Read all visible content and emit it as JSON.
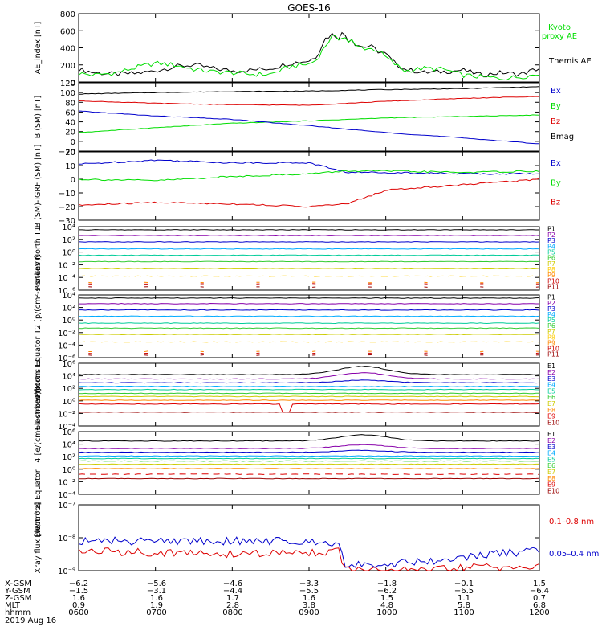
{
  "title": "GOES-16",
  "colors": {
    "black": "#000000",
    "blue": "#0000cc",
    "green": "#00dd00",
    "red": "#dd0000"
  },
  "chart_data": [
    {
      "type": "line",
      "ylabel": "AE_index [nT]",
      "ylim": [
        0,
        800
      ],
      "yscale": "linear",
      "yticks": [
        "800",
        "600",
        "400",
        "200",
        "0"
      ],
      "legend": [
        {
          "label": "Kyoto proxy AE",
          "color": "#00dd00"
        },
        {
          "label": "Themis AE",
          "color": "#000000"
        }
      ],
      "series": [
        {
          "name": "Themis AE",
          "color": "#000000",
          "x": [
            0,
            0.2,
            0.5,
            0.75,
            1.0,
            1.25,
            1.5,
            1.75,
            2.0,
            2.25,
            2.5,
            2.75,
            3.0,
            3.1,
            3.2,
            3.3,
            3.4,
            3.45,
            3.5,
            3.55,
            3.6,
            3.7,
            3.8,
            3.9,
            4.0,
            4.1,
            4.25,
            4.5,
            4.75,
            5.0,
            5.25,
            5.5,
            5.75,
            6.0
          ],
          "y": [
            150,
            110,
            90,
            100,
            130,
            180,
            200,
            160,
            130,
            140,
            160,
            220,
            250,
            300,
            500,
            560,
            520,
            600,
            480,
            520,
            450,
            410,
            420,
            360,
            330,
            230,
            150,
            110,
            120,
            140,
            80,
            110,
            90,
            160
          ]
        },
        {
          "name": "Kyoto proxy AE",
          "color": "#00dd00",
          "x": [
            0,
            0.2,
            0.5,
            0.75,
            1.0,
            1.25,
            1.5,
            1.75,
            2.0,
            2.25,
            2.5,
            2.75,
            3.0,
            3.1,
            3.2,
            3.3,
            3.4,
            3.45,
            3.5,
            3.55,
            3.6,
            3.7,
            3.8,
            3.9,
            4.0,
            4.1,
            4.25,
            4.5,
            4.75,
            5.0,
            5.25,
            5.5,
            5.75,
            6.0
          ],
          "y": [
            100,
            80,
            110,
            170,
            220,
            200,
            150,
            120,
            110,
            90,
            90,
            180,
            210,
            260,
            410,
            530,
            500,
            560,
            460,
            500,
            420,
            400,
            390,
            370,
            290,
            220,
            130,
            160,
            150,
            80,
            60,
            40,
            60,
            90
          ]
        }
      ]
    },
    {
      "type": "line",
      "ylabel": "B (SM) [nT]",
      "ylim": [
        -20,
        120
      ],
      "yscale": "linear",
      "yticks": [
        "120",
        "100",
        "80",
        "60",
        "40",
        "20",
        "0",
        "−20"
      ],
      "legend": [
        {
          "label": "Bx",
          "color": "#0000cc"
        },
        {
          "label": "By",
          "color": "#00dd00"
        },
        {
          "label": "Bz",
          "color": "#dd0000"
        },
        {
          "label": "Bmag",
          "color": "#000000"
        }
      ],
      "series": [
        {
          "name": "Bmag",
          "color": "#000000",
          "x": [
            0,
            1,
            2,
            3,
            4,
            5,
            6
          ],
          "y": [
            97,
            100,
            102,
            103,
            106,
            108,
            112
          ]
        },
        {
          "name": "Bz",
          "color": "#dd0000",
          "x": [
            0,
            1,
            2,
            3,
            4,
            5,
            6
          ],
          "y": [
            83,
            78,
            75,
            74,
            82,
            88,
            92
          ]
        },
        {
          "name": "By",
          "color": "#00dd00",
          "x": [
            0,
            1,
            2,
            3,
            4,
            5,
            6
          ],
          "y": [
            18,
            28,
            37,
            42,
            48,
            51,
            54
          ]
        },
        {
          "name": "Bx",
          "color": "#0000cc",
          "x": [
            0,
            1,
            2,
            3,
            4,
            5,
            6
          ],
          "y": [
            62,
            52,
            45,
            32,
            18,
            7,
            -5
          ]
        }
      ]
    },
    {
      "type": "line",
      "ylabel": "B (SM)-IGRF (SM) [nT]",
      "ylim": [
        -30,
        20
      ],
      "yscale": "linear",
      "yticks": [
        "20",
        "10",
        "0",
        "−10",
        "−20",
        "−30"
      ],
      "legend": [
        {
          "label": "Bx",
          "color": "#0000cc"
        },
        {
          "label": "By",
          "color": "#00dd00"
        },
        {
          "label": "Bz",
          "color": "#dd0000"
        }
      ],
      "series": [
        {
          "name": "Bx",
          "color": "#0000cc",
          "x": [
            0,
            1,
            2,
            3,
            3.5,
            4,
            5,
            6
          ],
          "y": [
            11,
            14,
            12,
            12,
            5,
            5,
            4,
            4
          ]
        },
        {
          "name": "By",
          "color": "#00dd00",
          "x": [
            0,
            1,
            2,
            3,
            3.5,
            4,
            5,
            6
          ],
          "y": [
            0,
            -1,
            2,
            4,
            6,
            6,
            5,
            6
          ]
        },
        {
          "name": "Bz",
          "color": "#dd0000",
          "x": [
            0,
            1,
            2,
            3,
            3.5,
            4,
            5,
            6
          ],
          "y": [
            -19,
            -17,
            -18,
            -20,
            -18,
            -8,
            -4,
            0
          ]
        }
      ]
    },
    {
      "type": "line",
      "ylabel": "Protons North T1",
      "yscale": "log",
      "ylim": [
        -6,
        4
      ],
      "yticks": [
        "10⁴",
        "10²",
        "10⁰",
        "10⁻²",
        "10⁻⁴",
        "10⁻⁶"
      ],
      "legend": [
        {
          "label": "P1"
        },
        {
          "label": "P2"
        },
        {
          "label": "P3"
        },
        {
          "label": "P4"
        },
        {
          "label": "P5"
        },
        {
          "label": "P6"
        },
        {
          "label": "P7"
        },
        {
          "label": "P8"
        },
        {
          "label": "P9"
        },
        {
          "label": "P10"
        },
        {
          "label": "P11"
        }
      ],
      "series": [
        {
          "name": "P1",
          "color": "#000000",
          "exp": 3.5
        },
        {
          "name": "P2",
          "color": "#8800aa",
          "exp": 2.6
        },
        {
          "name": "P3",
          "color": "#0000cc",
          "exp": 1.6
        },
        {
          "name": "P4",
          "color": "#00aaff",
          "exp": 0.5
        },
        {
          "name": "P5",
          "color": "#00cc99",
          "exp": -0.5
        },
        {
          "name": "P6",
          "color": "#33cc33",
          "exp": -1.5
        },
        {
          "name": "P7",
          "color": "#cccc00",
          "exp": -2.6
        },
        {
          "name": "P8",
          "color": "#ffcc00",
          "exp": -3.8,
          "dashed": true
        },
        {
          "name": "P9",
          "color": "#ff8800",
          "exp": -4.8,
          "sparse": true
        },
        {
          "name": "P10",
          "color": "#cc0000",
          "exp": -5.0,
          "sparse": true
        },
        {
          "name": "P11",
          "color": "#990000",
          "exp": -5.5,
          "sparse": true
        }
      ]
    },
    {
      "type": "line",
      "ylabel": "Protons Equator T2 [p/(cm²-s-sr-keV)]",
      "yscale": "log",
      "ylim": [
        -6,
        4
      ],
      "yticks": [
        "10⁴",
        "10²",
        "10⁰",
        "10⁻²",
        "10⁻⁴",
        "10⁻⁶"
      ],
      "legend": [
        {
          "label": "P1"
        },
        {
          "label": "P2"
        },
        {
          "label": "P3"
        },
        {
          "label": "P4"
        },
        {
          "label": "P5"
        },
        {
          "label": "P6"
        },
        {
          "label": "P7"
        },
        {
          "label": "P8"
        },
        {
          "label": "P9"
        },
        {
          "label": "P10"
        },
        {
          "label": "P11"
        }
      ],
      "series": [
        {
          "name": "P1",
          "color": "#000000",
          "exp": 3.5
        },
        {
          "name": "P2",
          "color": "#8800aa",
          "exp": 2.6
        },
        {
          "name": "P3",
          "color": "#0000cc",
          "exp": 1.6
        },
        {
          "name": "P4",
          "color": "#00aaff",
          "exp": 0.6
        },
        {
          "name": "P5",
          "color": "#00cc99",
          "exp": -0.5
        },
        {
          "name": "P6",
          "color": "#33cc33",
          "exp": -1.3
        },
        {
          "name": "P7",
          "color": "#cccc00",
          "exp": -2.3
        },
        {
          "name": "P8",
          "color": "#ffcc00",
          "exp": -3.5,
          "dashed": true
        },
        {
          "name": "P9",
          "color": "#ff8800",
          "exp": -5.0,
          "sparse": true
        },
        {
          "name": "P10",
          "color": "#cc0000",
          "exp": -5.3,
          "sparse": true
        },
        {
          "name": "P11",
          "color": "#990000",
          "exp": -5.6,
          "sparse": true
        }
      ]
    },
    {
      "type": "line",
      "ylabel": "Electrons North T3",
      "yscale": "log",
      "ylim": [
        -4,
        6
      ],
      "yticks": [
        "10⁶",
        "10⁴",
        "10²",
        "10⁰",
        "10⁻²",
        "10⁻⁴"
      ],
      "legend": [
        {
          "label": "E1"
        },
        {
          "label": "E2"
        },
        {
          "label": "E3"
        },
        {
          "label": "E4"
        },
        {
          "label": "E5"
        },
        {
          "label": "E6"
        },
        {
          "label": "E7"
        },
        {
          "label": "E8"
        },
        {
          "label": "E9"
        },
        {
          "label": "E10"
        }
      ],
      "series": [
        {
          "name": "E1",
          "color": "#000000",
          "exp": 4.2,
          "bump": 1.3
        },
        {
          "name": "E2",
          "color": "#8800aa",
          "exp": 3.5,
          "bump": 1.0
        },
        {
          "name": "E3",
          "color": "#0000cc",
          "exp": 2.9,
          "bump": 0.4
        },
        {
          "name": "E4",
          "color": "#00aaff",
          "exp": 2.3
        },
        {
          "name": "E5",
          "color": "#00cc99",
          "exp": 1.8
        },
        {
          "name": "E6",
          "color": "#33cc33",
          "exp": 1.2
        },
        {
          "name": "E7",
          "color": "#cccc00",
          "exp": 0.7
        },
        {
          "name": "E8",
          "color": "#ff8800",
          "exp": 0.1
        },
        {
          "name": "E9",
          "color": "#dd0000",
          "exp": -0.5
        },
        {
          "name": "E10",
          "color": "#990000",
          "exp": -1.8
        }
      ]
    },
    {
      "type": "line",
      "ylabel": "Electrons Equator T4 [e/(cm²-s-sr-keV)]",
      "yscale": "log",
      "ylim": [
        -4,
        6
      ],
      "yticks": [
        "10⁶",
        "10⁴",
        "10²",
        "10⁰",
        "10⁻²",
        "10⁻⁴"
      ],
      "legend": [
        {
          "label": "E1"
        },
        {
          "label": "E2"
        },
        {
          "label": "E3"
        },
        {
          "label": "E4"
        },
        {
          "label": "E5"
        },
        {
          "label": "E6"
        },
        {
          "label": "E7"
        },
        {
          "label": "E8"
        },
        {
          "label": "E9"
        },
        {
          "label": "E10"
        }
      ],
      "series": [
        {
          "name": "E1",
          "color": "#000000",
          "exp": 4.5,
          "bump": 1.0
        },
        {
          "name": "E2",
          "color": "#8800aa",
          "exp": 3.3,
          "bump": 0.6
        },
        {
          "name": "E3",
          "color": "#0000cc",
          "exp": 2.7,
          "bump": 0.3
        },
        {
          "name": "E4",
          "color": "#00aaff",
          "exp": 2.1
        },
        {
          "name": "E5",
          "color": "#00cc99",
          "exp": 1.7
        },
        {
          "name": "E6",
          "color": "#33cc33",
          "exp": 1.3
        },
        {
          "name": "E7",
          "color": "#cccc00",
          "exp": 0.8
        },
        {
          "name": "E8",
          "color": "#ff8800",
          "exp": 0.1
        },
        {
          "name": "E9",
          "color": "#dd0000",
          "exp": -0.8,
          "dashed": true
        },
        {
          "name": "E10",
          "color": "#990000",
          "exp": -1.5
        }
      ]
    },
    {
      "type": "line",
      "ylabel": "Xray flux [W/m^2]",
      "yscale": "log",
      "ylim": [
        -9,
        -7
      ],
      "yticks": [
        "10⁻⁷",
        "10⁻⁸",
        "10⁻⁹"
      ],
      "legend": [
        {
          "label": "0.1–0.8 nm",
          "color": "#dd0000"
        },
        {
          "label": "0.05–0.4 nm",
          "color": "#0000cc"
        }
      ],
      "series": [
        {
          "name": "0.05–0.4 nm",
          "color": "#0000cc",
          "x": [
            0,
            1,
            2,
            3,
            3.4,
            3.45,
            4.0,
            4.6,
            5.0,
            5.4,
            6.0
          ],
          "y": [
            -8.1,
            -8.1,
            -8.1,
            -8.1,
            -8.15,
            -8.8,
            -8.8,
            -8.7,
            -8.6,
            -8.5,
            -8.4
          ]
        },
        {
          "name": "0.1–0.8 nm",
          "color": "#dd0000",
          "x": [
            0,
            1,
            2,
            3,
            3.4,
            3.45,
            4.0,
            4.6,
            5.0,
            5.4,
            6.0
          ],
          "y": [
            -8.4,
            -8.45,
            -8.5,
            -8.45,
            -8.4,
            -9.0,
            -9.0,
            -9.0,
            -8.9,
            -8.9,
            -8.9
          ]
        }
      ]
    }
  ],
  "xaxis": {
    "hours": [
      "0600",
      "0700",
      "0800",
      "0900",
      "1000",
      "1100",
      "1200"
    ],
    "rows": [
      {
        "label": "X-GSM",
        "values": [
          "−6.2",
          "−5.6",
          "−4.6",
          "−3.3",
          "−1.8",
          "−0.1",
          "1.5"
        ]
      },
      {
        "label": "Y-GSM",
        "values": [
          "−1.5",
          "−3.1",
          "−4.4",
          "−5.5",
          "−6.2",
          "−6.5",
          "−6.4"
        ]
      },
      {
        "label": "Z-GSM",
        "values": [
          "1.6",
          "1.6",
          "1.7",
          "1.6",
          "1.5",
          "1.1",
          "0.7"
        ]
      },
      {
        "label": "MLT",
        "values": [
          "0.9",
          "1.9",
          "2.8",
          "3.8",
          "4.8",
          "5.8",
          "6.8"
        ]
      },
      {
        "label": "hhmm",
        "values": [
          "0600",
          "0700",
          "0800",
          "0900",
          "1000",
          "1100",
          "1200"
        ]
      }
    ],
    "date": "2019 Aug 16"
  }
}
